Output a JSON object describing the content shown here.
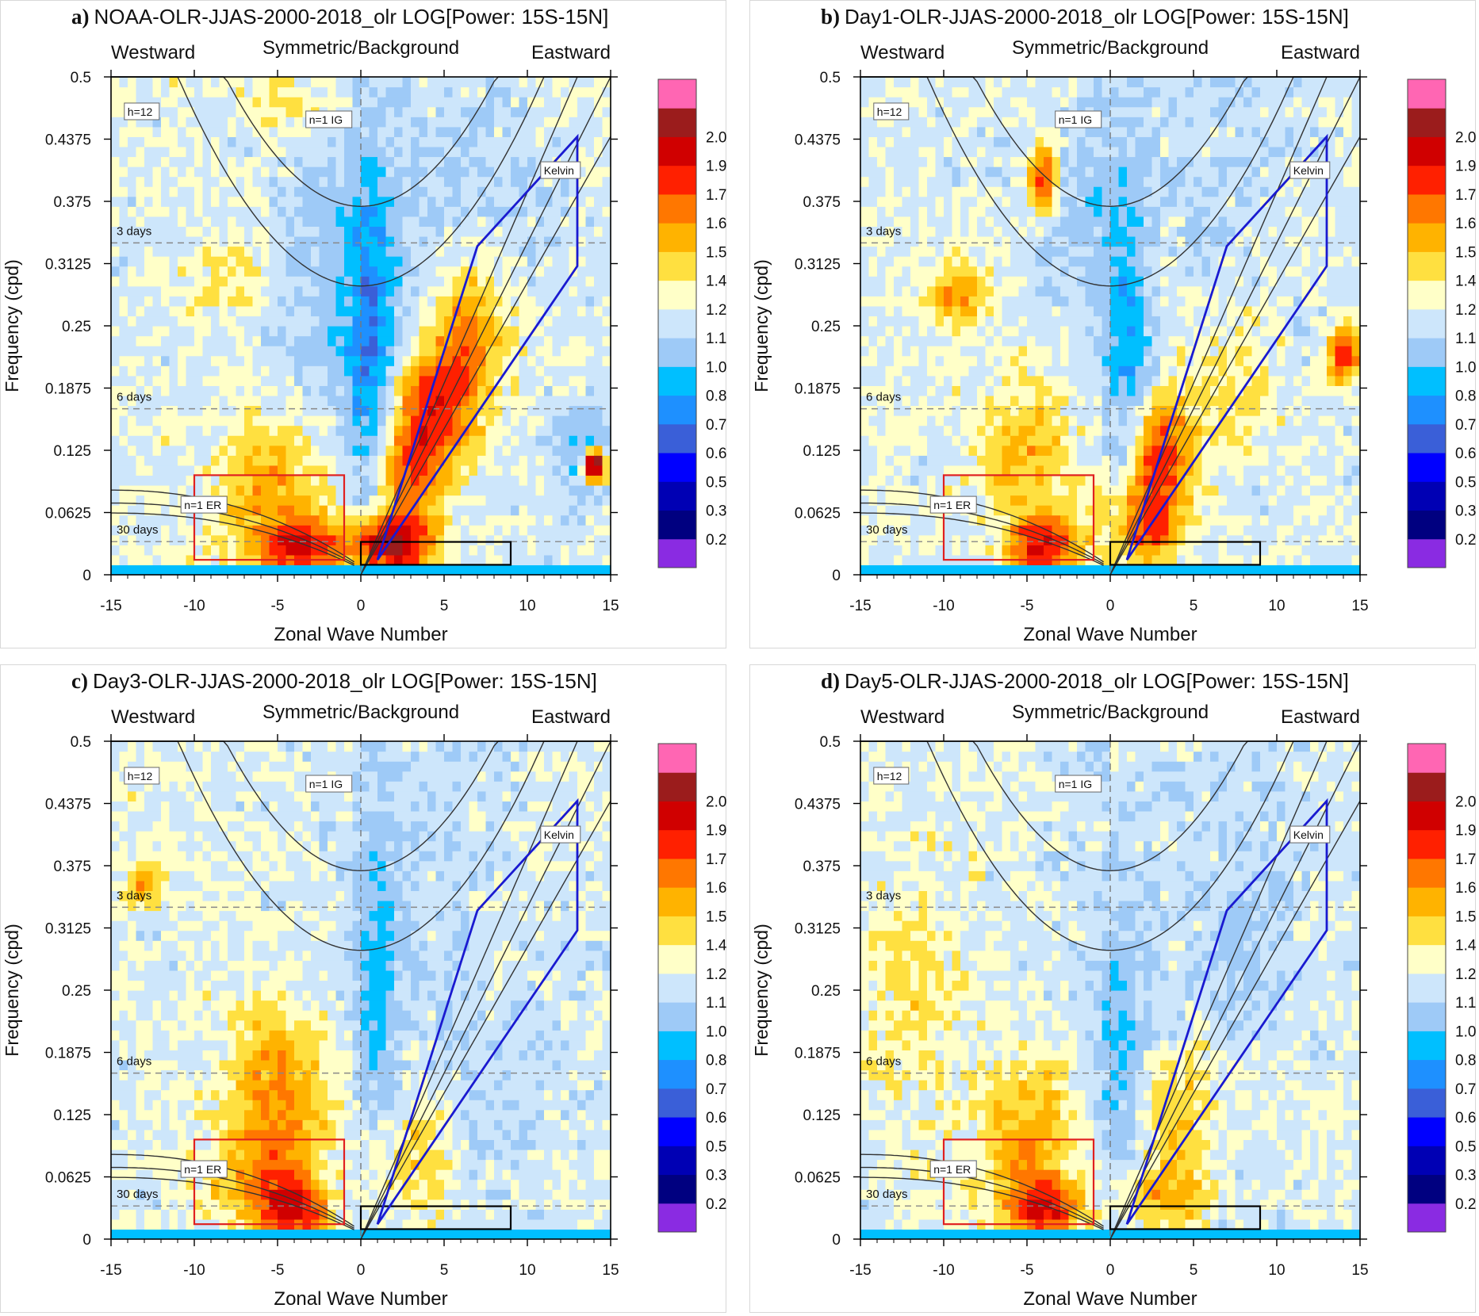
{
  "page": {
    "background": "#ffffff"
  },
  "panels": [
    {
      "letter": "a)",
      "title": "NOAA-OLR-JJAS-2000-2018_olr LOG[Power: 15S-15N]"
    },
    {
      "letter": "b)",
      "title": "Day1-OLR-JJAS-2000-2018_olr LOG[Power: 15S-15N]"
    },
    {
      "letter": "c)",
      "title": "Day3-OLR-JJAS-2000-2018_olr LOG[Power: 15S-15N]"
    },
    {
      "letter": "d)",
      "title": "Day5-OLR-JJAS-2000-2018_olr LOG[Power: 15S-15N]"
    }
  ],
  "common": {
    "top_labels": {
      "west": "Westward",
      "center": "Symmetric/Background",
      "east": "Eastward"
    },
    "xlabel": "Zonal Wave Number",
    "ylabel": "Frequency (cpd)",
    "period_labels": [
      {
        "label": "3 days",
        "freq": 0.3333
      },
      {
        "label": "6 days",
        "freq": 0.1667
      },
      {
        "label": "30 days",
        "freq": 0.0333
      }
    ],
    "wave_labels": {
      "h12": "h=12",
      "ig": "n=1 IG",
      "kelvin": "Kelvin",
      "er": "n=1 ER"
    }
  },
  "colorbar": {
    "labels": [
      "0.2",
      "0.3",
      "0.5",
      "0.6",
      "0.7",
      "0.8",
      "1.0",
      "1.1",
      "1.2",
      "1.4",
      "1.5",
      "1.6",
      "1.7",
      "1.9",
      "2.0"
    ],
    "colors": [
      "#8a2be2",
      "#000080",
      "#0000b4",
      "#0000ff",
      "#3a5fd8",
      "#1e90ff",
      "#00bfff",
      "#9ecaf7",
      "#cde6fb",
      "#ffffc8",
      "#ffe040",
      "#ffb300",
      "#ff7700",
      "#ff2000",
      "#d00000",
      "#9b1c1c",
      "#ff66b3"
    ]
  },
  "chart_data": {
    "type": "heatmap",
    "x_ticks": [
      "-15",
      "-10",
      "-5",
      "0",
      "5",
      "10",
      "15"
    ],
    "y_ticks": [
      "0",
      "0.0625",
      "0.125",
      "0.1875",
      "0.25",
      "0.3125",
      "0.375",
      "0.4375",
      "0.5"
    ],
    "xlim": [
      -15,
      15
    ],
    "ylim": [
      0,
      0.5
    ],
    "panels": [
      {
        "name": "a",
        "blobs": [
          {
            "k": 4.5,
            "f": 0.17,
            "sk": 1.6,
            "sf": 0.04,
            "v": 0.45
          },
          {
            "k": 6.5,
            "f": 0.24,
            "sk": 1.6,
            "sf": 0.05,
            "v": 0.35
          },
          {
            "k": 3.0,
            "f": 0.1,
            "sk": 1.4,
            "sf": 0.04,
            "v": 0.4
          },
          {
            "k": 1.8,
            "f": 0.03,
            "sk": 1.6,
            "sf": 0.02,
            "v": 0.75
          },
          {
            "k": -3.5,
            "f": 0.03,
            "sk": 1.8,
            "sf": 0.02,
            "v": 0.55
          },
          {
            "k": -5.5,
            "f": 0.09,
            "sk": 2.2,
            "sf": 0.05,
            "v": 0.25
          },
          {
            "k": 0.6,
            "f": 0.23,
            "sk": 1.0,
            "sf": 0.12,
            "v": -0.32
          },
          {
            "k": -2.0,
            "f": 0.3,
            "sk": 2.5,
            "sf": 0.1,
            "v": -0.15
          },
          {
            "k": 13.5,
            "f": 0.12,
            "sk": 1.3,
            "sf": 0.03,
            "v": -0.3
          },
          {
            "k": 14.0,
            "f": 0.11,
            "sk": 0.5,
            "sf": 0.012,
            "v": 1.1
          },
          {
            "k": -7.0,
            "f": 0.3,
            "sk": 3.0,
            "sf": 0.03,
            "v": 0.12
          },
          {
            "k": -4.0,
            "f": 0.47,
            "sk": 2.5,
            "sf": 0.03,
            "v": 0.12
          },
          {
            "k": 9.0,
            "f": 0.4,
            "sk": 3.0,
            "sf": 0.04,
            "v": -0.06
          }
        ]
      },
      {
        "name": "b",
        "blobs": [
          {
            "k": 3.0,
            "f": 0.12,
            "sk": 1.3,
            "sf": 0.04,
            "v": 0.5
          },
          {
            "k": 2.0,
            "f": 0.05,
            "sk": 1.5,
            "sf": 0.03,
            "v": 0.4
          },
          {
            "k": -4.0,
            "f": 0.03,
            "sk": 1.4,
            "sf": 0.02,
            "v": 0.55
          },
          {
            "k": -5.0,
            "f": 0.12,
            "sk": 2.0,
            "sf": 0.06,
            "v": 0.22
          },
          {
            "k": -4.0,
            "f": 0.4,
            "sk": 0.6,
            "sf": 0.025,
            "v": 0.5
          },
          {
            "k": 14.0,
            "f": 0.22,
            "sk": 0.6,
            "sf": 0.02,
            "v": 0.5
          },
          {
            "k": 1.0,
            "f": 0.22,
            "sk": 1.0,
            "sf": 0.1,
            "v": -0.25
          },
          {
            "k": -1.0,
            "f": 0.38,
            "sk": 2.0,
            "sf": 0.08,
            "v": -0.1
          },
          {
            "k": -9.0,
            "f": 0.28,
            "sk": 1.2,
            "sf": 0.02,
            "v": 0.3
          },
          {
            "k": 7.0,
            "f": 0.2,
            "sk": 2.0,
            "sf": 0.05,
            "v": 0.15
          }
        ]
      },
      {
        "name": "c",
        "blobs": [
          {
            "k": -5.0,
            "f": 0.15,
            "sk": 2.0,
            "sf": 0.06,
            "v": 0.32
          },
          {
            "k": -4.0,
            "f": 0.03,
            "sk": 1.3,
            "sf": 0.02,
            "v": 0.5
          },
          {
            "k": -6.0,
            "f": 0.06,
            "sk": 2.2,
            "sf": 0.03,
            "v": 0.25
          },
          {
            "k": 3.0,
            "f": 0.08,
            "sk": 1.6,
            "sf": 0.04,
            "v": 0.2
          },
          {
            "k": 1.0,
            "f": 0.25,
            "sk": 1.0,
            "sf": 0.12,
            "v": -0.22
          },
          {
            "k": -13.0,
            "f": 0.36,
            "sk": 0.8,
            "sf": 0.02,
            "v": 0.25
          },
          {
            "k": 9.0,
            "f": 0.12,
            "sk": 3.0,
            "sf": 0.06,
            "v": -0.06
          }
        ]
      },
      {
        "name": "d",
        "blobs": [
          {
            "k": -4.0,
            "f": 0.03,
            "sk": 1.4,
            "sf": 0.02,
            "v": 0.52
          },
          {
            "k": -5.0,
            "f": 0.1,
            "sk": 2.2,
            "sf": 0.06,
            "v": 0.25
          },
          {
            "k": 4.0,
            "f": 0.12,
            "sk": 1.6,
            "sf": 0.05,
            "v": 0.2
          },
          {
            "k": 3.0,
            "f": 0.04,
            "sk": 2.0,
            "sf": 0.02,
            "v": 0.22
          },
          {
            "k": 0.5,
            "f": 0.18,
            "sk": 1.0,
            "sf": 0.1,
            "v": -0.2
          },
          {
            "k": -12.0,
            "f": 0.25,
            "sk": 2.0,
            "sf": 0.08,
            "v": 0.12
          },
          {
            "k": 9.0,
            "f": 0.3,
            "sk": 3.0,
            "sf": 0.06,
            "v": -0.06
          }
        ]
      }
    ]
  }
}
